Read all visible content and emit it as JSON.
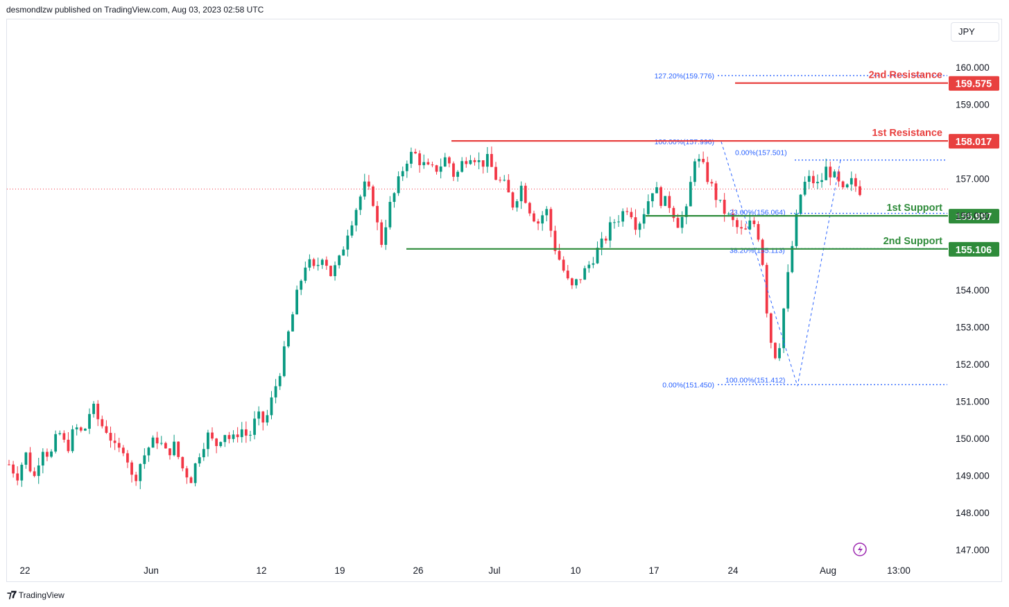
{
  "header": {
    "text": "desmondlzw published on TradingView.com, Aug 03, 2023 02:58 UTC"
  },
  "footer": {
    "brand": "TradingView",
    "logo": "tradingview-logo-icon"
  },
  "currency": "JPY",
  "colors": {
    "up": "#089981",
    "down": "#f23645",
    "resistance": "#e8403f",
    "support": "#2e8b3a",
    "fib": "#2962ff"
  },
  "chart_data": {
    "type": "candlestick",
    "title": "",
    "ylim": [
      146.6,
      160.8
    ],
    "y_ticks": [
      "160.000",
      "159.000",
      "157.000",
      "156.000",
      "154.000",
      "153.000",
      "152.000",
      "151.000",
      "150.000",
      "149.000",
      "148.000",
      "147.000"
    ],
    "y_tick_values": [
      160,
      159,
      157,
      156,
      154,
      153,
      152,
      151,
      150,
      149,
      148,
      147
    ],
    "x_ticks": [
      "22",
      "Jun",
      "12",
      "19",
      "26",
      "Jul",
      "10",
      "17",
      "24",
      "Aug",
      "13:00"
    ],
    "current_price": 156.72,
    "levels": [
      {
        "name": "2nd Resistance",
        "price": 159.575,
        "label": "159.575",
        "kind": "resistance"
      },
      {
        "name": "1st Resistance",
        "price": 158.017,
        "label": "158.017",
        "kind": "resistance"
      },
      {
        "name": "1st Support",
        "price": 155.997,
        "label": "155.997",
        "kind": "support"
      },
      {
        "name": "2nd Support",
        "price": 155.106,
        "label": "155.106",
        "kind": "support"
      }
    ],
    "fib_labels": [
      {
        "text": "127.20%(159.776)",
        "price": 159.776
      },
      {
        "text": "100.00%(157.996)",
        "price": 157.996
      },
      {
        "text": "0.00%(157.501)",
        "price": 157.501
      },
      {
        "text": "23.60%(156.064)",
        "price": 156.064
      },
      {
        "text": "38.20%(155.113)",
        "price": 155.113
      },
      {
        "text": "0.00%(151.450)",
        "price": 151.45
      },
      {
        "text": "100.00%(151.412)",
        "price": 151.412
      }
    ],
    "waypoints": [
      149.3,
      149.0,
      149.6,
      148.9,
      149.8,
      149.5,
      150.2,
      149.7,
      150.3,
      150.1,
      150.9,
      150.4,
      150.2,
      149.6,
      149.8,
      148.8,
      149.4,
      149.8,
      150.0,
      149.6,
      149.8,
      149.2,
      148.9,
      149.6,
      150.1,
      149.8,
      150.2,
      149.9,
      150.3,
      150.0,
      150.6,
      150.4,
      151.2,
      152.0,
      153.0,
      154.0,
      154.8,
      154.5,
      155.0,
      154.4,
      154.8,
      155.6,
      156.2,
      156.8,
      156.5,
      155.2,
      156.2,
      156.8,
      157.5,
      157.7,
      157.4,
      157.2,
      157.3,
      157.6,
      157.0,
      157.5,
      157.7,
      157.4,
      157.5,
      157.0,
      156.8,
      156.3,
      156.8,
      156.2,
      155.8,
      156.2,
      155.2,
      154.6,
      154.0,
      154.3,
      154.6,
      155.0,
      155.3,
      155.8,
      156.0,
      156.3,
      155.7,
      156.2,
      156.8,
      156.4,
      156.3,
      155.8,
      156.1,
      157.6,
      157.3,
      156.8,
      156.3,
      156.0,
      155.7,
      155.5,
      155.9,
      155.3,
      152.8,
      152.1,
      153.9,
      155.5,
      156.8,
      157.0,
      156.8,
      157.3,
      157.0,
      156.6,
      156.9,
      156.7
    ],
    "candles": []
  }
}
